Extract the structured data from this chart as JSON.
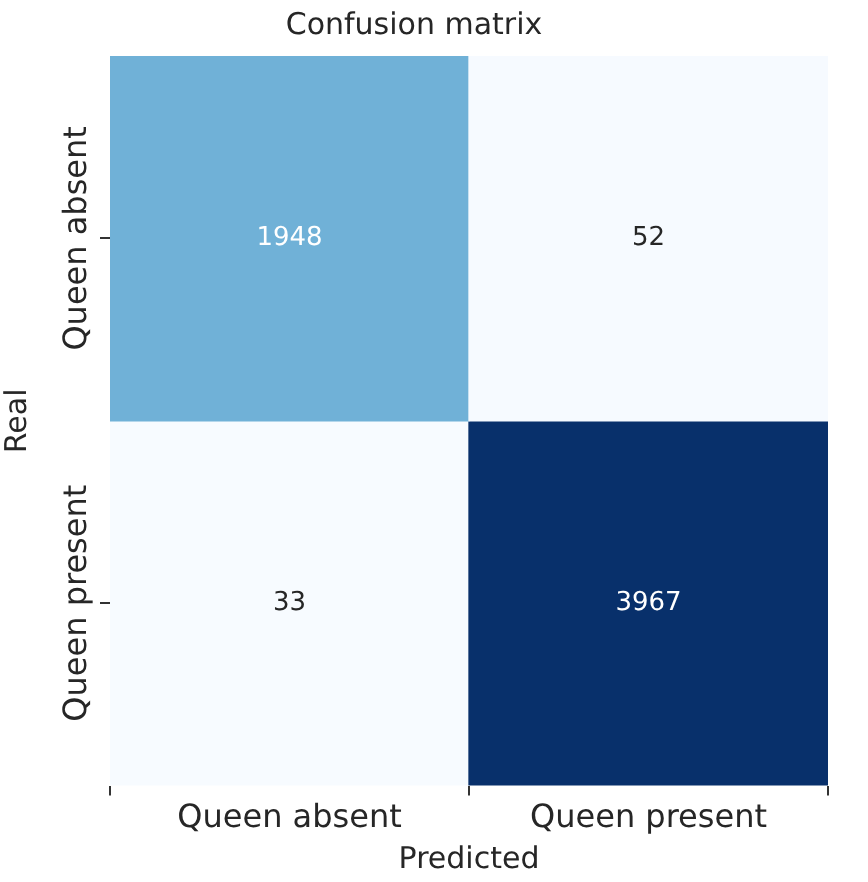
{
  "chart_data": {
    "type": "heatmap",
    "title": "Confusion matrix",
    "xlabel": "Predicted",
    "ylabel": "Real",
    "categories": [
      "Queen absent",
      "Queen present"
    ],
    "y_categories": [
      "Queen absent",
      "Queen present"
    ],
    "cells": [
      [
        1948,
        52
      ],
      [
        33,
        3967
      ]
    ],
    "data_labels": true
  }
}
